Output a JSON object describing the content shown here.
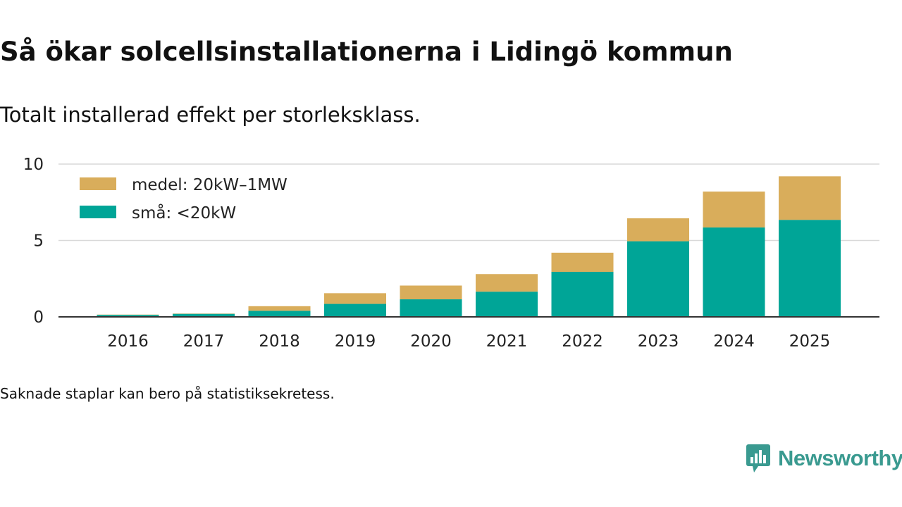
{
  "header": {
    "title": "Så ökar solcellsinstallationerna i Lidingö kommun",
    "subtitle": "Totalt installerad effekt per storleksklass."
  },
  "footer": {
    "note": "Saknade staplar kan bero på statistiksekretess.",
    "brand": "Newsworthy"
  },
  "colors": {
    "medel": "#d9ad5b",
    "sma": "#00a597",
    "brand": "#3a9a90"
  },
  "chart_data": {
    "type": "bar",
    "stacked": true,
    "title": "Så ökar solcellsinstallationerna i Lidingö kommun",
    "subtitle": "Totalt installerad effekt per storleksklass.",
    "xlabel": "",
    "ylabel": "",
    "ylim": [
      0,
      10
    ],
    "yticks": [
      0,
      5,
      10
    ],
    "categories": [
      "2016",
      "2017",
      "2018",
      "2019",
      "2020",
      "2021",
      "2022",
      "2023",
      "2024",
      "2025"
    ],
    "series": [
      {
        "name": "små: <20kW",
        "key": "sma",
        "values": [
          0.13,
          0.2,
          0.4,
          0.85,
          1.15,
          1.65,
          2.95,
          4.95,
          5.85,
          6.35
        ]
      },
      {
        "name": "medel: 20kW–1MW",
        "key": "medel",
        "values": [
          0.02,
          0.02,
          0.3,
          0.7,
          0.9,
          1.15,
          1.25,
          1.5,
          2.35,
          2.85
        ]
      }
    ],
    "legend": [
      "medel: 20kW–1MW",
      "små: <20kW"
    ],
    "legend_position": "top-left",
    "grid": true
  }
}
